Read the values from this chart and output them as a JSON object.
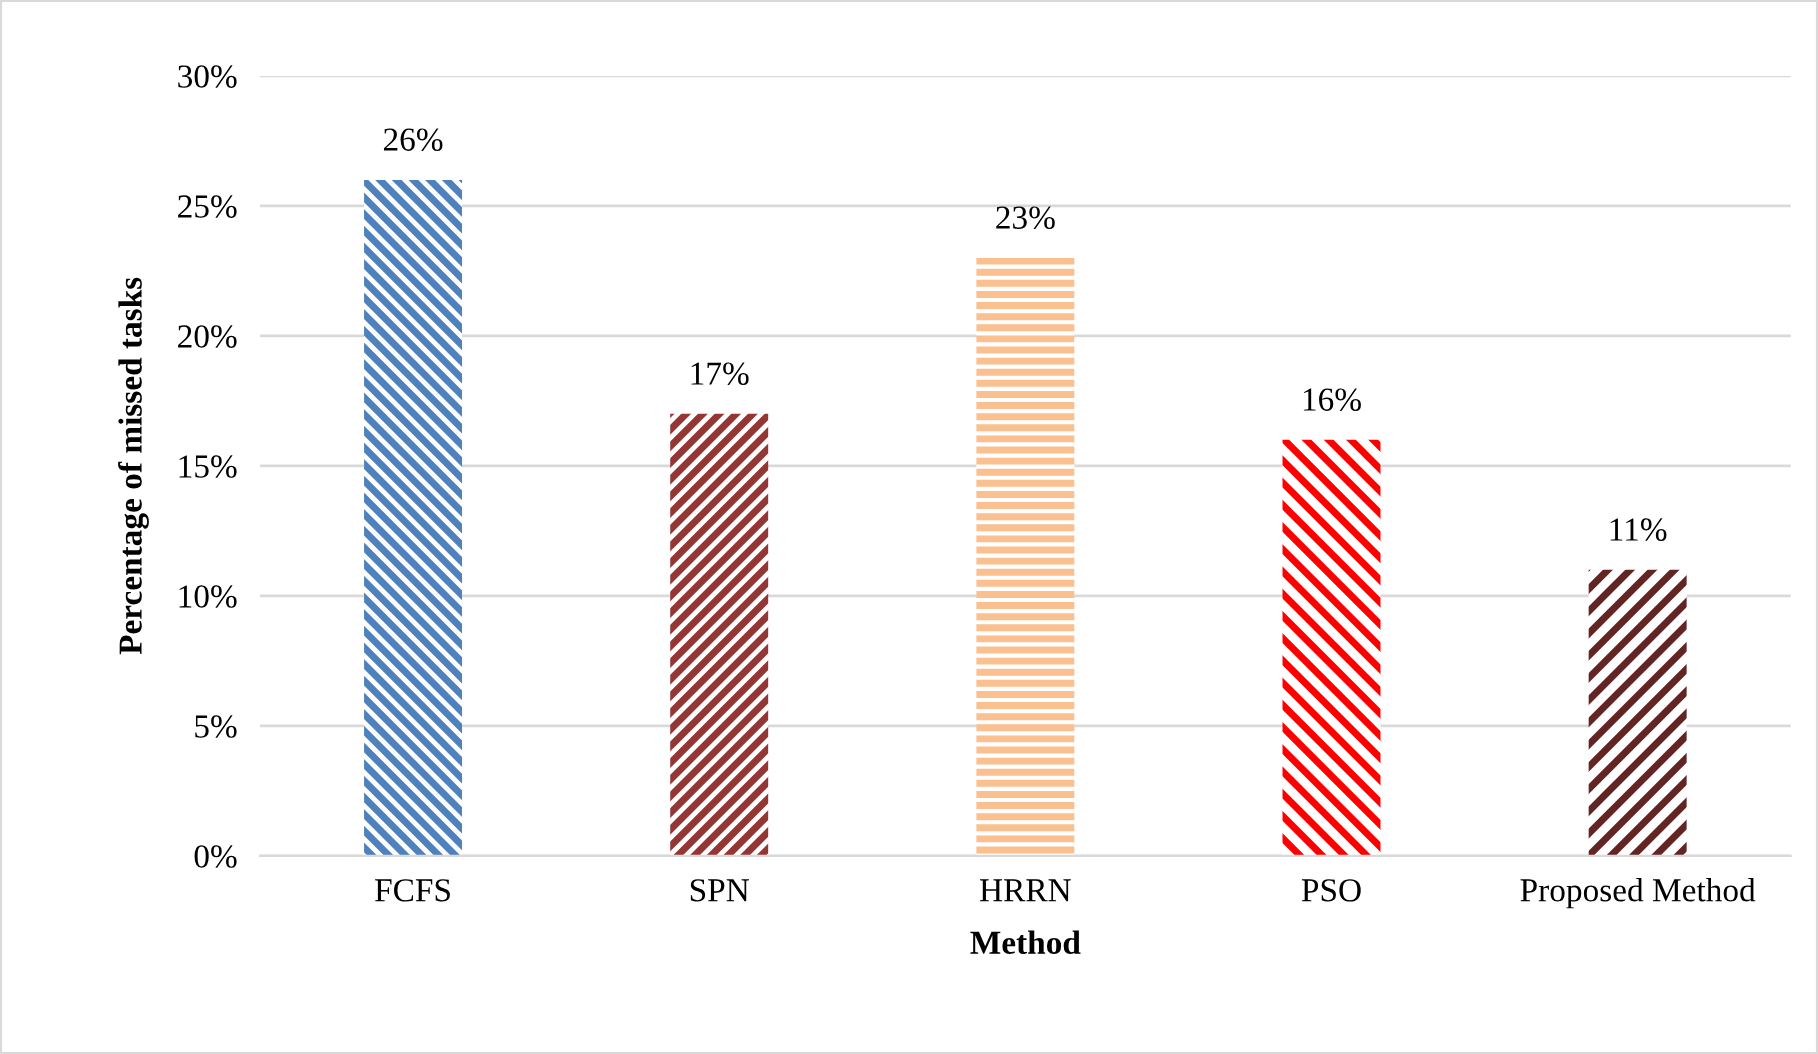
{
  "chart_data": {
    "type": "bar",
    "xlabel": "Method",
    "ylabel": "Percentage of missed tasks",
    "categories": [
      "FCFS",
      "SPN",
      "HRRN",
      "PSO",
      "Proposed Method"
    ],
    "values": [
      26,
      17,
      23,
      16,
      11
    ],
    "colors": [
      "#4f81bd",
      "#943634",
      "#fac090",
      "#ff0000",
      "#632523"
    ],
    "value_labels": [
      "26%",
      "17%",
      "23%",
      "16%",
      "11%"
    ],
    "ylim": [
      0,
      30
    ],
    "yticks": [
      {
        "value": 0,
        "label": "0%"
      },
      {
        "value": 5,
        "label": "5%"
      },
      {
        "value": 10,
        "label": "10%"
      },
      {
        "value": 15,
        "label": "15%"
      },
      {
        "value": 20,
        "label": "20%"
      },
      {
        "value": 25,
        "label": "25%"
      },
      {
        "value": 30,
        "label": "30%"
      }
    ],
    "grid": "y",
    "legend": false
  }
}
